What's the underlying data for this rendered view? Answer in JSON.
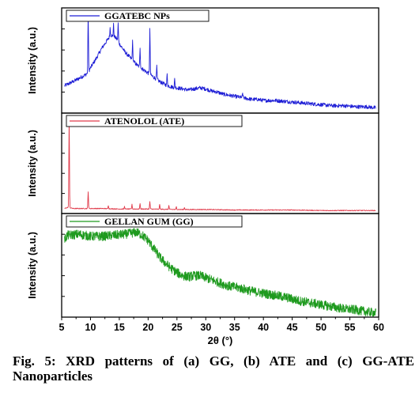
{
  "caption": "Fig. 5: XRD patterns of (a) GG, (b) ATE and (c) GG-ATE Nanoparticles",
  "chart_data": {
    "type": "line",
    "xlabel": "2θ (°)",
    "xlim": [
      5,
      60
    ],
    "x_ticks": [
      5,
      10,
      15,
      20,
      25,
      30,
      35,
      40,
      45,
      50,
      55,
      60
    ],
    "panels": [
      {
        "name": "GGATEBC NPs",
        "ylabel": "Intensity (a.u.)",
        "color": "#1f1fd6",
        "x": [
          5.5,
          7,
          8,
          9,
          9.5,
          10,
          11,
          12,
          13,
          13.5,
          14,
          14.5,
          15,
          16,
          17,
          18,
          19,
          20,
          21,
          22,
          23,
          24,
          25,
          26,
          27,
          28,
          29,
          30,
          31,
          32,
          33,
          34,
          35,
          36,
          37,
          38,
          39,
          40,
          42,
          44,
          46,
          48,
          50,
          52,
          54,
          56,
          58,
          59.5
        ],
        "y": [
          0.26,
          0.3,
          0.33,
          0.36,
          0.38,
          0.43,
          0.52,
          0.62,
          0.7,
          0.74,
          0.73,
          0.71,
          0.66,
          0.58,
          0.52,
          0.46,
          0.42,
          0.38,
          0.34,
          0.3,
          0.27,
          0.25,
          0.24,
          0.23,
          0.22,
          0.23,
          0.24,
          0.23,
          0.21,
          0.2,
          0.18,
          0.17,
          0.16,
          0.15,
          0.14,
          0.13,
          0.13,
          0.12,
          0.12,
          0.11,
          0.1,
          0.09,
          0.08,
          0.07,
          0.07,
          0.06,
          0.06,
          0.05
        ],
        "peaks": [
          {
            "x": 9.6,
            "y": 0.96
          },
          {
            "x": 13.4,
            "y": 0.81
          },
          {
            "x": 14.0,
            "y": 0.84
          },
          {
            "x": 14.8,
            "y": 0.85
          },
          {
            "x": 17.3,
            "y": 0.68
          },
          {
            "x": 18.6,
            "y": 0.63
          },
          {
            "x": 20.3,
            "y": 0.8
          },
          {
            "x": 21.5,
            "y": 0.44
          },
          {
            "x": 23.3,
            "y": 0.37
          },
          {
            "x": 24.6,
            "y": 0.32
          },
          {
            "x": 36.4,
            "y": 0.19
          }
        ]
      },
      {
        "name": "ATENOLOL (ATE)",
        "ylabel": "Intensity (a.u.)",
        "color": "#e03a4a",
        "x": [
          5.5,
          6,
          6.3,
          7,
          8,
          9,
          10,
          12,
          15,
          20,
          25,
          30,
          35,
          40,
          45,
          50,
          55,
          59.5
        ],
        "y": [
          0.05,
          0.06,
          0.06,
          0.05,
          0.05,
          0.05,
          0.05,
          0.05,
          0.045,
          0.045,
          0.04,
          0.04,
          0.035,
          0.035,
          0.035,
          0.03,
          0.03,
          0.03
        ],
        "peaks": [
          {
            "x": 6.3,
            "y": 0.97
          },
          {
            "x": 9.6,
            "y": 0.22
          },
          {
            "x": 13.1,
            "y": 0.08
          },
          {
            "x": 15.9,
            "y": 0.07
          },
          {
            "x": 17.2,
            "y": 0.09
          },
          {
            "x": 18.6,
            "y": 0.1
          },
          {
            "x": 20.3,
            "y": 0.12
          },
          {
            "x": 22.0,
            "y": 0.09
          },
          {
            "x": 23.6,
            "y": 0.08
          },
          {
            "x": 24.9,
            "y": 0.07
          },
          {
            "x": 26.3,
            "y": 0.06
          }
        ]
      },
      {
        "name": "GELLAN GUM (GG)",
        "ylabel": "Intensity (a.u.)",
        "color": "#1e9a1e",
        "x": [
          5.5,
          6,
          8,
          10,
          12,
          14,
          16,
          17,
          18,
          19,
          20,
          21,
          22,
          23,
          24,
          25,
          26,
          27,
          28,
          29,
          30,
          31,
          32,
          34,
          36,
          38,
          40,
          42,
          44,
          46,
          48,
          50,
          52,
          54,
          56,
          58,
          59.5
        ],
        "y": [
          0.75,
          0.79,
          0.8,
          0.78,
          0.78,
          0.79,
          0.8,
          0.81,
          0.82,
          0.79,
          0.74,
          0.66,
          0.58,
          0.52,
          0.47,
          0.43,
          0.4,
          0.39,
          0.4,
          0.4,
          0.38,
          0.36,
          0.34,
          0.3,
          0.28,
          0.25,
          0.23,
          0.21,
          0.19,
          0.16,
          0.14,
          0.12,
          0.1,
          0.08,
          0.07,
          0.05,
          0.04
        ],
        "peaks": []
      }
    ]
  }
}
